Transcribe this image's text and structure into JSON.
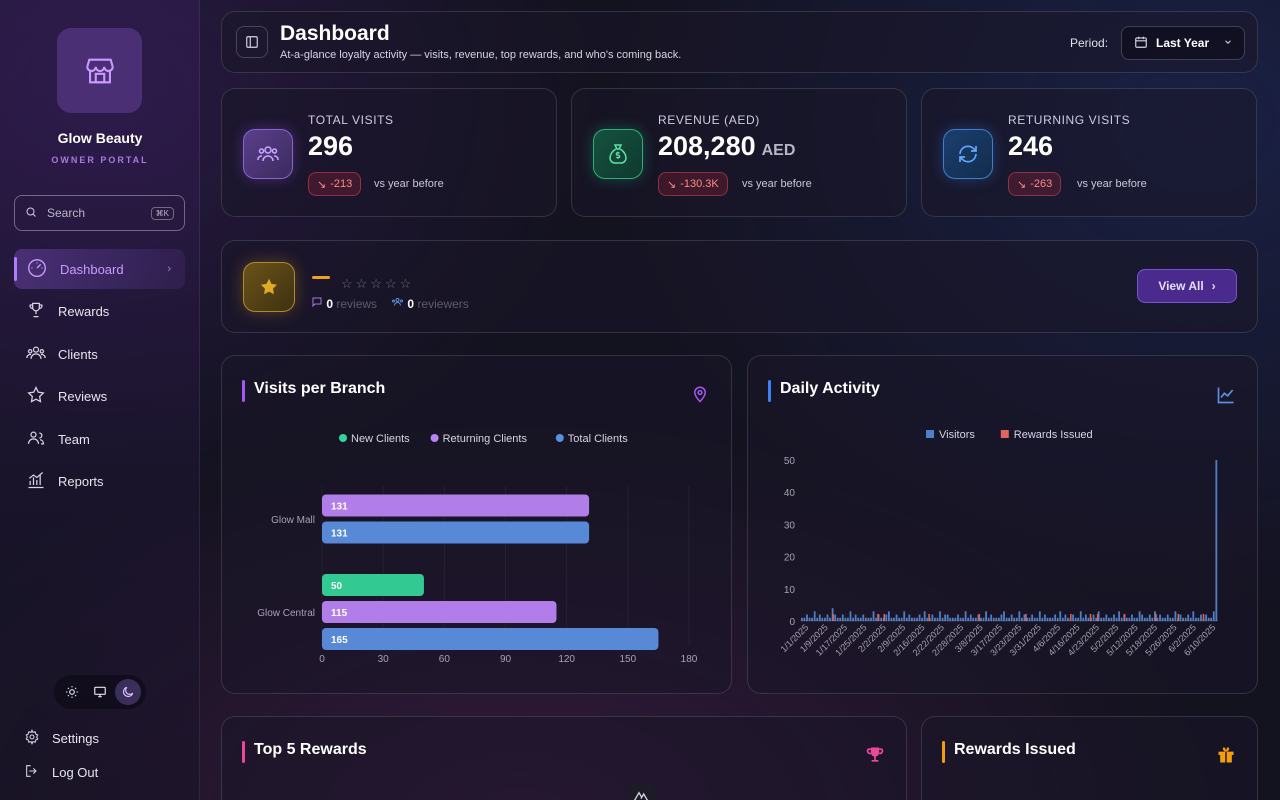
{
  "sidebar": {
    "brand_name": "Glow Beauty",
    "brand_subtitle": "OWNER PORTAL",
    "search_placeholder": "Search",
    "search_shortcut": "⌘K",
    "nav": [
      {
        "label": "Dashboard",
        "icon": "gauge-icon",
        "active": true
      },
      {
        "label": "Rewards",
        "icon": "trophy-icon"
      },
      {
        "label": "Clients",
        "icon": "users-icon"
      },
      {
        "label": "Reviews",
        "icon": "star-icon"
      },
      {
        "label": "Team",
        "icon": "team-icon"
      },
      {
        "label": "Reports",
        "icon": "reports-icon"
      }
    ],
    "theme_options": [
      "light",
      "system",
      "dark"
    ],
    "theme_selected": "dark",
    "settings_label": "Settings",
    "logout_label": "Log Out"
  },
  "header": {
    "title": "Dashboard",
    "subtitle": "At-a-glance loyalty activity — visits, revenue, top rewards, and who's coming back.",
    "period_label": "Period:",
    "period_value": "Last Year"
  },
  "stats": [
    {
      "label": "TOTAL VISITS",
      "value": "296",
      "unit": "",
      "delta": "-213",
      "vs": "vs year before",
      "icon": "visits-icon",
      "color": "#8b5cf6"
    },
    {
      "label": "REVENUE (AED)",
      "value": "208,280",
      "unit": "AED",
      "delta": "-130.3K",
      "vs": "vs year before",
      "icon": "money-bag-icon",
      "color": "#10b981"
    },
    {
      "label": "RETURNING VISITS",
      "value": "246",
      "unit": "",
      "delta": "-263",
      "vs": "vs year before",
      "icon": "refresh-icon",
      "color": "#3b82f6"
    }
  ],
  "reviews": {
    "rating_display": "—",
    "reviews_count": "0",
    "reviews_label": "reviews",
    "reviewers_count": "0",
    "reviewers_label": "reviewers",
    "view_all_label": "View All"
  },
  "visits_panel": {
    "title": "Visits per Branch",
    "accent": "#a855f7"
  },
  "activity_panel": {
    "title": "Daily Activity",
    "accent": "#3b82f6"
  },
  "top_rewards_panel": {
    "title": "Top 5 Rewards",
    "accent": "#ec4899"
  },
  "rewards_issued_panel": {
    "title": "Rewards Issued",
    "accent": "#f59e0b"
  },
  "chart_data": [
    {
      "type": "bar",
      "orientation": "horizontal",
      "categories": [
        "Glow Mall",
        "Glow Central"
      ],
      "series": [
        {
          "name": "New Clients",
          "color": "#34d399",
          "values": [
            null,
            50
          ]
        },
        {
          "name": "Returning Clients",
          "color": "#b983f2",
          "values": [
            131,
            115
          ]
        },
        {
          "name": "Total Clients",
          "color": "#5b8fe0",
          "values": [
            131,
            165
          ]
        }
      ],
      "xticks": [
        0,
        30,
        60,
        90,
        120,
        150,
        180
      ],
      "xlim": [
        0,
        180
      ],
      "legend": "top-center"
    },
    {
      "type": "bar",
      "series": [
        {
          "name": "Visitors",
          "color": "#4f7fc7"
        },
        {
          "name": "Rewards Issued",
          "color": "#e0655f"
        }
      ],
      "yticks": [
        0,
        10,
        20,
        30,
        40,
        50
      ],
      "ylim": [
        0,
        50
      ],
      "xticks": [
        "1/1/2025",
        "1/9/2025",
        "1/17/2025",
        "1/25/2025",
        "2/2/2025",
        "2/9/2025",
        "2/16/2025",
        "2/22/2025",
        "2/28/2025",
        "3/8/2025",
        "3/17/2025",
        "3/23/2025",
        "3/31/2025",
        "4/6/2025",
        "4/16/2025",
        "4/23/2025",
        "5/2/2025",
        "5/12/2025",
        "5/18/2025",
        "5/26/2025",
        "6/2/2025",
        "6/10/2025"
      ],
      "visitors_daily": [
        1,
        1,
        2,
        1,
        1,
        3,
        1,
        2,
        1,
        1,
        2,
        1,
        4,
        2,
        1,
        1,
        2,
        1,
        1,
        3,
        1,
        2,
        1,
        1,
        2,
        1,
        1,
        1,
        3,
        1,
        2,
        1,
        1,
        2,
        3,
        1,
        1,
        2,
        1,
        1,
        3,
        1,
        2,
        1,
        1,
        1,
        2,
        1,
        3,
        1,
        1,
        2,
        1,
        1,
        3,
        1,
        2,
        2,
        1,
        1,
        1,
        2,
        1,
        1,
        3,
        1,
        2,
        1,
        1,
        2,
        1,
        1,
        3,
        1,
        2,
        1,
        1,
        1,
        2,
        3,
        1,
        1,
        2,
        1,
        1,
        3,
        1,
        2,
        1,
        1,
        2,
        1,
        1,
        3,
        1,
        2,
        1,
        1,
        1,
        2,
        1,
        3,
        1,
        2,
        1,
        1,
        2,
        1,
        1,
        3,
        1,
        2,
        1,
        1,
        2,
        1,
        3,
        1,
        1,
        2,
        1,
        1,
        2,
        1,
        3,
        1,
        2,
        1,
        1,
        2,
        1,
        1,
        3,
        2,
        1,
        1,
        2,
        1,
        3,
        1,
        2,
        1,
        1,
        2,
        1,
        1,
        3,
        1,
        2,
        1,
        1,
        2,
        1,
        3,
        1,
        1,
        2,
        1,
        2,
        1,
        1,
        3,
        50
      ],
      "rewards_daily": [
        0,
        0,
        0,
        0,
        0,
        0,
        0,
        0,
        0,
        0,
        0,
        0,
        0,
        0,
        0,
        0,
        0,
        0,
        0,
        0,
        0,
        0,
        0,
        0,
        0,
        0,
        0,
        0,
        0,
        0,
        0,
        0,
        0,
        0,
        0,
        0,
        0,
        0,
        0,
        0,
        0,
        0,
        0,
        0,
        0,
        0,
        0,
        0,
        0,
        0,
        0,
        0,
        0,
        0,
        0,
        0,
        0,
        0,
        0,
        0,
        0,
        0,
        0,
        0,
        0,
        0,
        0,
        0,
        0,
        0,
        0,
        0,
        0,
        0,
        0,
        0,
        0,
        0,
        0,
        0,
        0,
        0,
        0,
        0,
        0,
        0,
        0,
        0,
        0,
        0,
        0,
        0,
        0,
        0,
        0,
        0,
        0,
        0,
        0,
        0,
        0,
        0,
        0,
        0,
        0,
        0,
        0,
        0,
        0,
        0,
        0,
        0,
        0,
        0,
        0,
        0,
        0,
        0,
        0,
        0,
        0,
        0,
        0,
        0,
        0,
        0,
        0,
        0,
        0,
        0,
        0,
        0,
        0,
        0,
        0,
        0,
        0,
        0,
        0,
        0,
        0,
        0,
        0,
        0,
        0,
        0,
        0,
        0,
        0,
        0,
        0,
        0,
        0,
        0,
        0,
        0,
        0,
        0,
        0,
        0,
        0,
        0,
        0
      ],
      "legend": "top-center"
    }
  ]
}
